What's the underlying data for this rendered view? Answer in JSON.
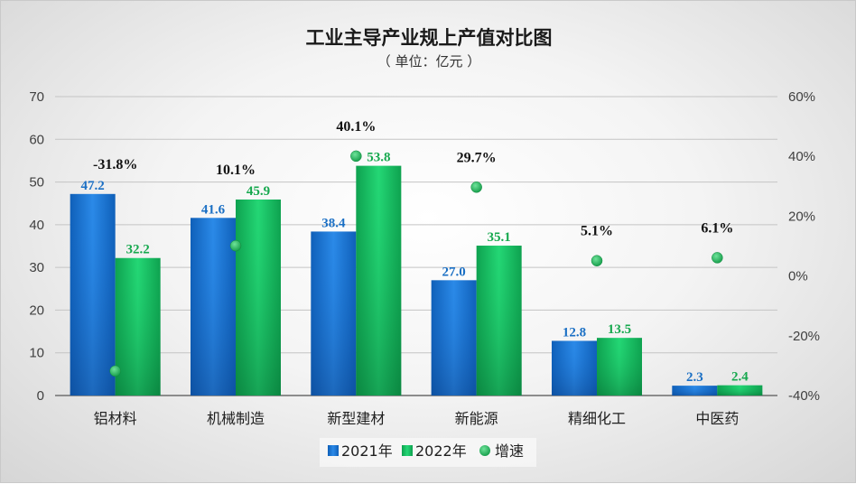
{
  "chart_data": {
    "type": "bar",
    "title": "工业主导产业规上产值对比图",
    "subtitle": "（ 单位：亿元 ）",
    "categories": [
      "铝材料",
      "机械制造",
      "新型建材",
      "新能源",
      "精细化工",
      "中医药"
    ],
    "series": [
      {
        "name": "2021年",
        "type": "bar",
        "axis": "left",
        "values": [
          47.2,
          41.6,
          38.4,
          27.0,
          12.8,
          2.3
        ],
        "labels": [
          "47.2",
          "41.6",
          "38.4",
          "27.0",
          "12.8",
          "2.3"
        ],
        "color": "#1270d4"
      },
      {
        "name": "2022年",
        "type": "bar",
        "axis": "left",
        "values": [
          32.2,
          45.9,
          53.8,
          35.1,
          13.5,
          2.4
        ],
        "labels": [
          "32.2",
          "45.9",
          "53.8",
          "35.1",
          "13.5",
          "2.4"
        ],
        "color": "#14c463"
      },
      {
        "name": "增速",
        "type": "scatter",
        "axis": "right",
        "values": [
          -31.8,
          10.1,
          40.1,
          29.7,
          5.1,
          6.1
        ],
        "labels": [
          "-31.8%",
          "10.1%",
          "40.1%",
          "29.7%",
          "5.1%",
          "6.1%"
        ],
        "color": "#1fb85a"
      }
    ],
    "y_left": {
      "min": 0,
      "max": 70,
      "ticks": [
        "0",
        "10",
        "20",
        "30",
        "40",
        "50",
        "60",
        "70"
      ]
    },
    "y_right": {
      "min": -40,
      "max": 60,
      "ticks": [
        "-40%",
        "-20%",
        "0%",
        "20%",
        "40%",
        "60%"
      ]
    },
    "grid": true,
    "legend_position": "bottom"
  }
}
